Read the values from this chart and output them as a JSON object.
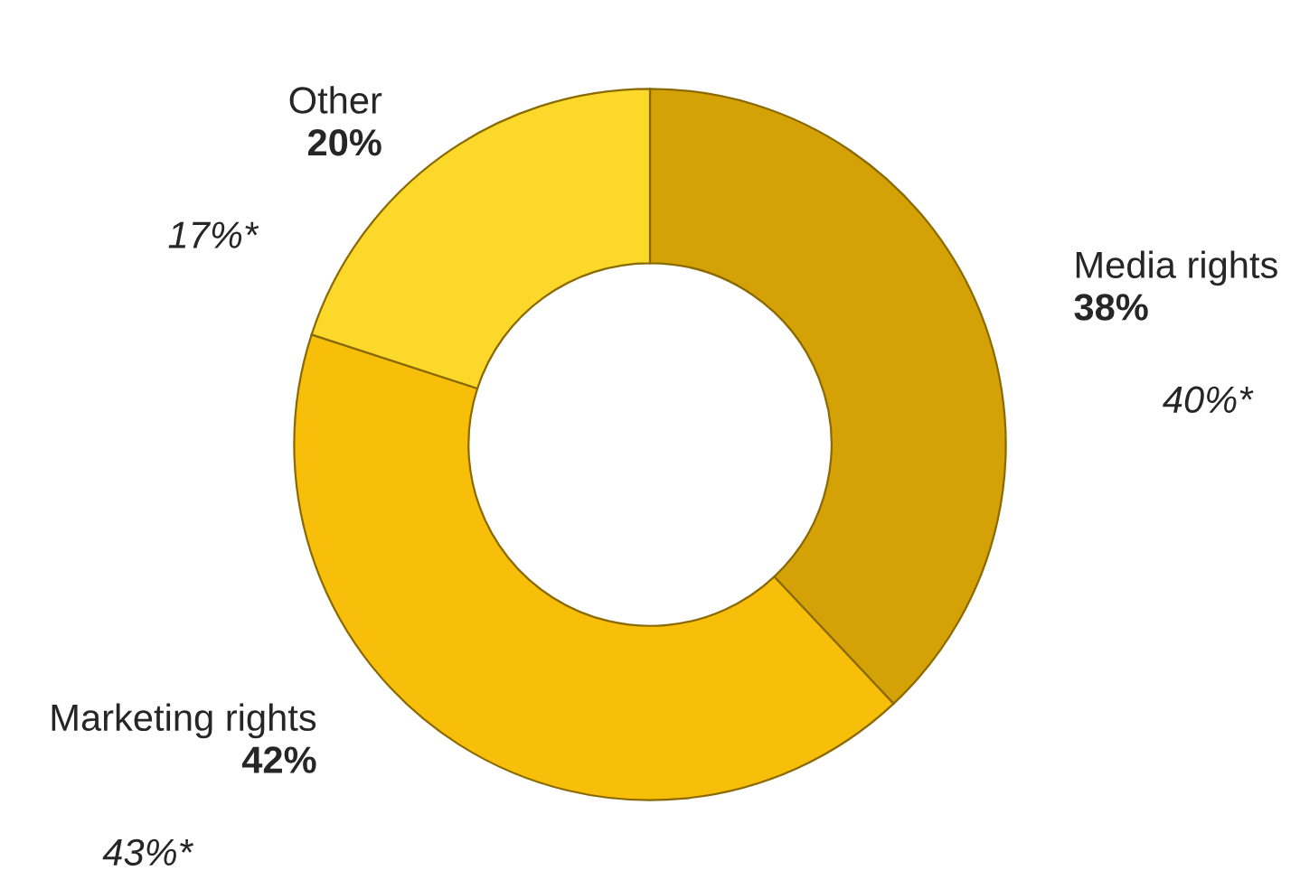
{
  "chart_data": {
    "type": "donut",
    "categories": [
      "Media rights",
      "Marketing rights",
      "Other"
    ],
    "values": [
      38,
      42,
      20
    ],
    "colors": [
      "#d4a106",
      "#f7be0a",
      "#fcd82a"
    ],
    "value_labels": [
      "38%",
      "42%",
      "20%"
    ],
    "annotations": [
      "40%*",
      "43%*",
      "17%*"
    ]
  }
}
